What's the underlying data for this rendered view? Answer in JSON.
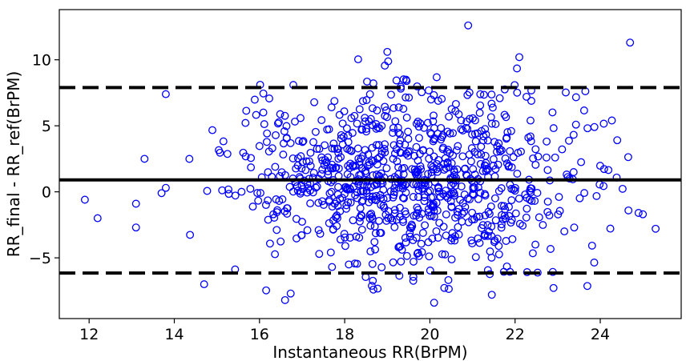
{
  "chart_data": {
    "type": "scatter",
    "title": "",
    "xlabel": "Instantaneous RR(BrPM)",
    "ylabel": "RR_final - RR_ref(BrPM)",
    "xlim": [
      11.3,
      25.9
    ],
    "ylim": [
      -9.6,
      13.8
    ],
    "xticks": [
      12,
      14,
      16,
      18,
      20,
      22,
      24
    ],
    "yticks": [
      -5,
      0,
      5,
      10
    ],
    "ytick_labels": [
      "−5",
      "0",
      "5",
      "10"
    ],
    "grid": false,
    "marker": "open-circle",
    "marker_color": "#0000ff",
    "reference_lines": [
      {
        "y": 0.9,
        "style": "solid",
        "color": "#000000"
      },
      {
        "y": 7.9,
        "style": "dashed",
        "color": "#000000"
      },
      {
        "y": -6.15,
        "style": "dashed",
        "color": "#000000"
      }
    ],
    "point_count_approx": 950,
    "x_distribution": {
      "mean": 19.6,
      "sd": 2.1,
      "min": 11.9,
      "max": 25.3
    },
    "y_distribution": {
      "mean": 0.9,
      "sd": 3.5,
      "min": -8.4,
      "max": 12.6
    },
    "labeled_extremes": [
      {
        "x": 11.9,
        "y": -0.6
      },
      {
        "x": 12.2,
        "y": -2.0
      },
      {
        "x": 13.1,
        "y": -0.9
      },
      {
        "x": 13.1,
        "y": -2.7
      },
      {
        "x": 13.3,
        "y": 2.5
      },
      {
        "x": 13.8,
        "y": 7.4
      },
      {
        "x": 13.8,
        "y": 0.3
      },
      {
        "x": 13.7,
        "y": -0.1
      },
      {
        "x": 14.7,
        "y": -7.0
      },
      {
        "x": 16.6,
        "y": -8.2
      },
      {
        "x": 19.0,
        "y": 10.6
      },
      {
        "x": 20.1,
        "y": -8.4
      },
      {
        "x": 20.9,
        "y": 12.6
      },
      {
        "x": 22.1,
        "y": 10.2
      },
      {
        "x": 24.7,
        "y": 11.3
      },
      {
        "x": 24.9,
        "y": -1.6
      },
      {
        "x": 25.0,
        "y": -1.7
      },
      {
        "x": 25.3,
        "y": -2.8
      }
    ]
  }
}
